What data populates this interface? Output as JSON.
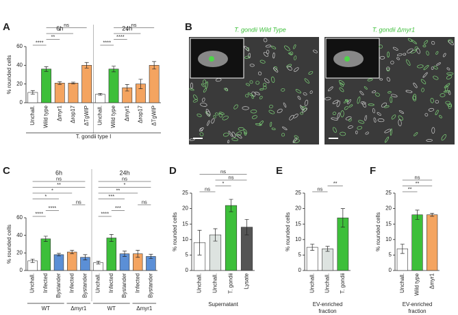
{
  "letters": [
    "A",
    "B",
    "C",
    "D",
    "E",
    "F"
  ],
  "images": {
    "titles": [
      "T. gondii Wild Type",
      "T. gondii Δmyr1"
    ]
  },
  "chart_data": [
    {
      "type": "bar",
      "ylabel": "% rounded cells",
      "ylim": [
        0,
        60
      ],
      "yticks": [
        0,
        20,
        40,
        60
      ],
      "categories": [
        "Unchall.",
        "Wild type",
        "Δmyr1",
        "Δrop17",
        "ΔTgWIP",
        "Unchall.",
        "Wild type",
        "Δmyr1",
        "Δrop17",
        "ΔTgWIP"
      ],
      "values": [
        11,
        36,
        21,
        21,
        40,
        9,
        36,
        16,
        20,
        40
      ],
      "errors": [
        2,
        2.5,
        1.5,
        1,
        3,
        1,
        3,
        3.5,
        5,
        4
      ],
      "colors": [
        "#ffffff",
        "#3dbf3a",
        "#f4a460",
        "#f4a460",
        "#f4a460",
        "#ffffff",
        "#3dbf3a",
        "#f4a460",
        "#f4a460",
        "#f4a460"
      ],
      "group_titles": [
        {
          "name": "6h",
          "start": 0,
          "end": 4
        },
        {
          "name": "24h",
          "start": 5,
          "end": 9
        }
      ],
      "xlabel": "T. gondii type I",
      "brackets": [
        {
          "text": "****",
          "from": 0,
          "to": 1
        },
        {
          "text": "**",
          "from": 1,
          "to": 2
        },
        {
          "text": "*",
          "from": 1,
          "to": 3
        },
        {
          "text": "ns",
          "from": 1,
          "to": 4
        },
        {
          "text": "****",
          "from": 5,
          "to": 6
        },
        {
          "text": "****",
          "from": 6,
          "to": 7
        },
        {
          "text": "*",
          "from": 6,
          "to": 8
        },
        {
          "text": "ns",
          "from": 6,
          "to": 9
        }
      ]
    },
    {
      "type": "bar",
      "ylabel": "% rounded cells",
      "ylim": [
        0,
        60
      ],
      "yticks": [
        0,
        20,
        40,
        60
      ],
      "categories": [
        "Unchall.",
        "Infected",
        "Bystander",
        "Infected",
        "Bystander",
        "Unchall.",
        "Infected",
        "Bystander",
        "Infected",
        "Bystander"
      ],
      "values": [
        11,
        36,
        18,
        21,
        15,
        9,
        37,
        19,
        19,
        16
      ],
      "errors": [
        2,
        3,
        1.5,
        2,
        3,
        1.5,
        4,
        3,
        4,
        2.5
      ],
      "colors": [
        "#ffffff",
        "#3dbf3a",
        "#5b8fd6",
        "#f4a460",
        "#5b8fd6",
        "#ffffff",
        "#3dbf3a",
        "#5b8fd6",
        "#f4a460",
        "#5b8fd6"
      ],
      "group_titles": [
        {
          "name": "6h",
          "start": 0,
          "end": 4
        },
        {
          "name": "24h",
          "start": 5,
          "end": 9
        }
      ],
      "groups_below": [
        {
          "name": "WT",
          "start": 0,
          "end": 2
        },
        {
          "name": "Δmyr1",
          "start": 3,
          "end": 4
        },
        {
          "name": "WT",
          "start": 5,
          "end": 7
        },
        {
          "name": "Δmyr1",
          "start": 8,
          "end": 9
        }
      ],
      "brackets": [
        {
          "text": "****",
          "from": 0,
          "to": 1
        },
        {
          "text": "****",
          "from": 1,
          "to": 2
        },
        {
          "text": "ns",
          "from": 3,
          "to": 4
        },
        {
          "text": "*",
          "from": 0,
          "to": 2
        },
        {
          "text": "*",
          "from": 0,
          "to": 3
        },
        {
          "text": "**",
          "from": 0,
          "to": 4
        },
        {
          "text": "ns",
          "from": 0,
          "to": 4
        },
        {
          "text": "****",
          "from": 5,
          "to": 6
        },
        {
          "text": "***",
          "from": 6,
          "to": 7
        },
        {
          "text": "ns",
          "from": 8,
          "to": 9
        },
        {
          "text": "***",
          "from": 5,
          "to": 7
        },
        {
          "text": "**",
          "from": 5,
          "to": 8
        },
        {
          "text": "*",
          "from": 5,
          "to": 9
        },
        {
          "text": "ns",
          "from": 5,
          "to": 9
        }
      ]
    },
    {
      "type": "bar",
      "ylabel": "% rounded cells",
      "ylim": [
        0,
        25
      ],
      "yticks": [
        0,
        5,
        10,
        15,
        20,
        25
      ],
      "categories": [
        "Unchall.",
        "Unchall.",
        "T. gondii",
        "Lysate"
      ],
      "values": [
        9,
        11.5,
        21,
        14
      ],
      "errors": [
        4,
        2,
        2,
        2.5
      ],
      "colors": [
        "#ffffff",
        "#dde3e0",
        "#3dbf3a",
        "#555555"
      ],
      "xlabel": "Supernatant",
      "brackets": [
        {
          "text": "ns",
          "from": 0,
          "to": 1
        },
        {
          "text": "*",
          "from": 1,
          "to": 2
        },
        {
          "text": "ns",
          "from": 1,
          "to": 3
        },
        {
          "text": "ns",
          "from": 0,
          "to": 3
        }
      ]
    },
    {
      "type": "bar",
      "ylabel": "% rounded cells",
      "ylim": [
        0,
        25
      ],
      "yticks": [
        0,
        5,
        10,
        15,
        20,
        25
      ],
      "categories": [
        "Unchall.",
        "Unchall.",
        "T. gondii"
      ],
      "values": [
        7.5,
        7,
        17
      ],
      "errors": [
        1,
        0.8,
        3
      ],
      "colors": [
        "#ffffff",
        "#dde3e0",
        "#3dbf3a"
      ],
      "xlabel": [
        "EV-enriched",
        "fraction"
      ],
      "brackets": [
        {
          "text": "ns",
          "from": 0,
          "to": 1
        },
        {
          "text": "**",
          "from": 1,
          "to": 2
        }
      ]
    },
    {
      "type": "bar",
      "ylabel": "% rounded cells",
      "ylim": [
        0,
        25
      ],
      "yticks": [
        0,
        5,
        10,
        15,
        20,
        25
      ],
      "categories": [
        "Unchall.",
        "Wild type",
        "Δmyr1"
      ],
      "values": [
        7,
        18,
        18
      ],
      "errors": [
        1.5,
        1.5,
        0.5
      ],
      "colors": [
        "#ffffff",
        "#3dbf3a",
        "#f4a460"
      ],
      "xlabel": [
        "EV-enriched",
        "fraction"
      ],
      "brackets": [
        {
          "text": "**",
          "from": 0,
          "to": 1
        },
        {
          "text": "**",
          "from": 0,
          "to": 2
        },
        {
          "text": "ns",
          "from": 0,
          "to": 2
        }
      ]
    }
  ]
}
